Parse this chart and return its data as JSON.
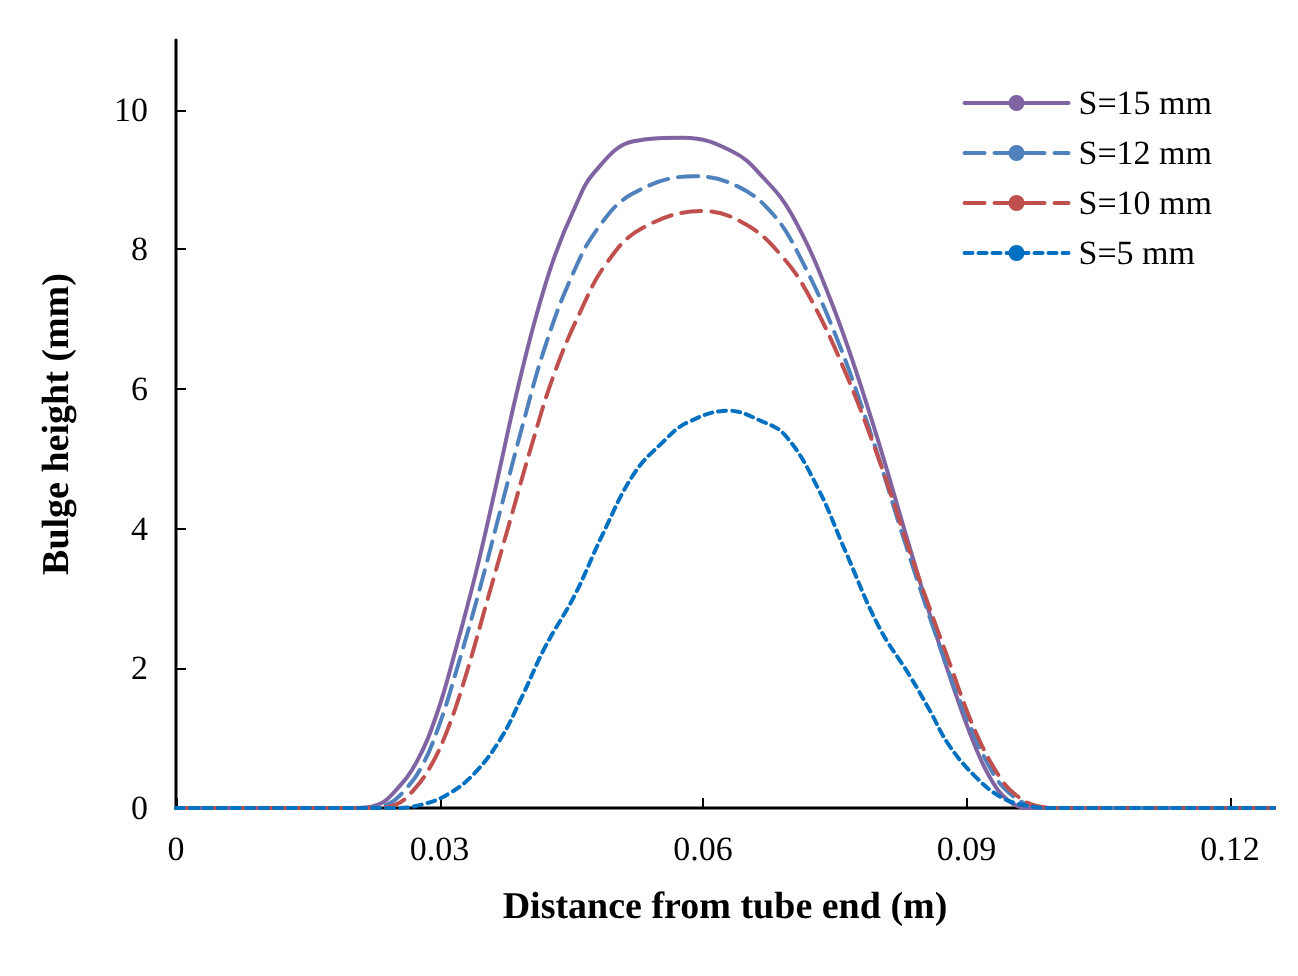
{
  "chart_data": {
    "type": "line",
    "xlabel": "Distance from tube end (m)",
    "ylabel": "Bulge height (mm)",
    "xlim": [
      0,
      0.125
    ],
    "xticks": [
      0,
      0.03,
      0.06,
      0.09,
      0.12
    ],
    "ylim": [
      0,
      11
    ],
    "yticks": [
      0,
      2,
      4,
      6,
      8,
      10
    ],
    "grid": false,
    "legend": "top right",
    "marker": "none",
    "series": [
      {
        "name": "S=15 mm",
        "color": "#8064a2",
        "line_style": "solid",
        "x": [
          0,
          0.02,
          0.023,
          0.025,
          0.0274,
          0.0297,
          0.0319,
          0.0342,
          0.0364,
          0.0387,
          0.0409,
          0.0431,
          0.0454,
          0.0476,
          0.0521,
          0.0578,
          0.0634,
          0.0667,
          0.0701,
          0.0746,
          0.0791,
          0.0836,
          0.087,
          0.0903,
          0.0926,
          0.0948,
          0.097,
          0.125
        ],
        "values": [
          0,
          0,
          0.05,
          0.25,
          0.66,
          1.35,
          2.3,
          3.4,
          4.6,
          5.9,
          7.0,
          7.9,
          8.6,
          9.1,
          9.55,
          9.6,
          9.4,
          9.05,
          8.5,
          7.25,
          5.6,
          3.7,
          2.3,
          1.1,
          0.45,
          0.1,
          0,
          0
        ]
      },
      {
        "name": "S=12 mm",
        "color": "#4f81bd",
        "line_style": "dashed",
        "x": [
          0,
          0.021,
          0.024,
          0.026,
          0.028,
          0.03,
          0.032,
          0.0345,
          0.037,
          0.0395,
          0.042,
          0.045,
          0.048,
          0.052,
          0.059,
          0.064,
          0.068,
          0.071,
          0.075,
          0.079,
          0.083,
          0.087,
          0.09,
          0.093,
          0.095,
          0.097,
          0.1,
          0.125
        ],
        "values": [
          0,
          0,
          0.05,
          0.25,
          0.6,
          1.2,
          2.0,
          3.1,
          4.3,
          5.5,
          6.6,
          7.6,
          8.3,
          8.8,
          9.05,
          8.9,
          8.5,
          7.9,
          6.8,
          5.4,
          3.8,
          2.3,
          1.3,
          0.5,
          0.2,
          0.05,
          0,
          0
        ]
      },
      {
        "name": "S=10 mm",
        "color": "#c0504d",
        "line_style": "dashed",
        "x": [
          0,
          0.022,
          0.025,
          0.027,
          0.029,
          0.031,
          0.033,
          0.0355,
          0.038,
          0.0405,
          0.043,
          0.046,
          0.049,
          0.053,
          0.06,
          0.065,
          0.069,
          0.072,
          0.076,
          0.08,
          0.084,
          0.088,
          0.091,
          0.094,
          0.096,
          0.098,
          0.101,
          0.125
        ],
        "values": [
          0,
          0,
          0.05,
          0.25,
          0.6,
          1.15,
          1.9,
          3.0,
          4.1,
          5.2,
          6.2,
          7.1,
          7.8,
          8.3,
          8.55,
          8.35,
          7.9,
          7.35,
          6.3,
          5.0,
          3.5,
          2.1,
          1.1,
          0.4,
          0.15,
          0.03,
          0,
          0
        ]
      },
      {
        "name": "S=5 mm",
        "color": "#0070c0",
        "line_style": "dotted",
        "x": [
          0,
          0.025,
          0.028,
          0.031,
          0.034,
          0.037,
          0.0393,
          0.042,
          0.0454,
          0.0485,
          0.0521,
          0.0555,
          0.0582,
          0.0629,
          0.0665,
          0.0694,
          0.073,
          0.0762,
          0.08,
          0.0835,
          0.0858,
          0.088,
          0.091,
          0.094,
          0.097,
          0.1,
          0.125
        ],
        "values": [
          0,
          0,
          0.05,
          0.2,
          0.5,
          1.0,
          1.57,
          2.3,
          3.05,
          3.9,
          4.78,
          5.25,
          5.52,
          5.69,
          5.55,
          5.33,
          4.6,
          3.68,
          2.6,
          1.9,
          1.4,
          0.9,
          0.45,
          0.15,
          0.03,
          0,
          0
        ]
      }
    ]
  }
}
